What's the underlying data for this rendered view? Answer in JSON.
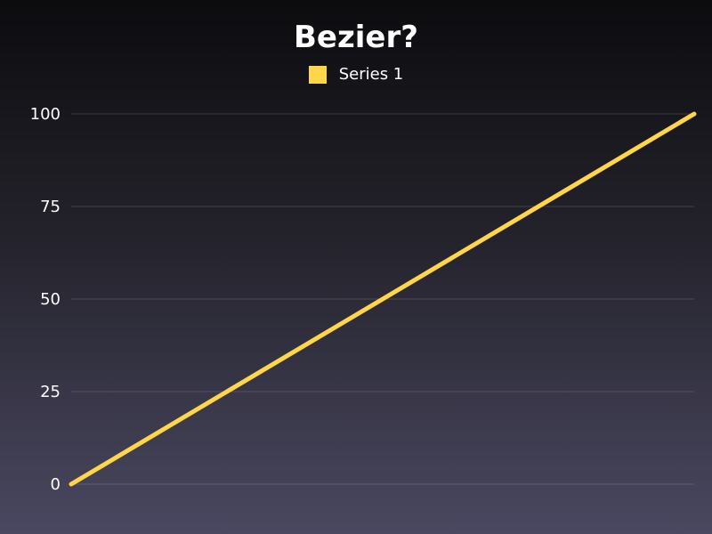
{
  "chart_data": {
    "type": "line",
    "title": "Bezier?",
    "xlabel": "",
    "ylabel": "",
    "x": [
      0,
      1
    ],
    "series": [
      {
        "name": "Series 1",
        "values": [
          0,
          100
        ],
        "color": "#ffd54a"
      }
    ],
    "yticks": [
      0,
      25,
      50,
      75,
      100
    ],
    "ylim": [
      0,
      100
    ],
    "grid": true,
    "legend": "top-center"
  }
}
